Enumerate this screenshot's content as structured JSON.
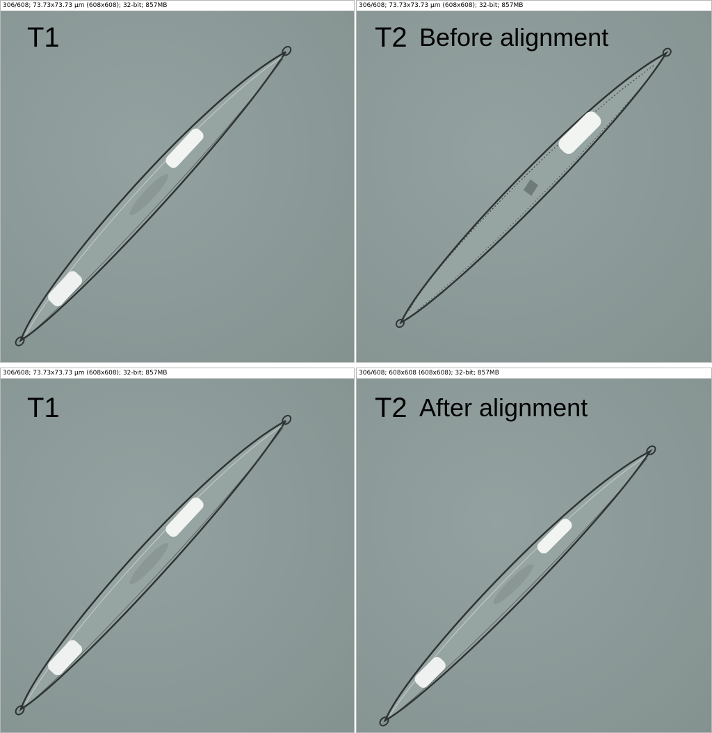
{
  "panels": [
    {
      "header": "306/608; 73.73x73.73 µm (608x608); 32-bit; 857MB",
      "time_label": "T1",
      "note": ""
    },
    {
      "header": "306/608; 73.73x73.73 µm (608x608); 32-bit; 857MB",
      "time_label": "T2",
      "note": "Before alignment"
    },
    {
      "header": "306/608; 73.73x73.73 µm (608x608); 32-bit; 857MB",
      "time_label": "T1",
      "note": ""
    },
    {
      "header": "306/608; 608x608   (608x608); 32-bit; 857MB",
      "time_label": "T2",
      "note": "After alignment"
    }
  ],
  "colors": {
    "background": "#8a9897",
    "cell_outline": "#2e3433",
    "chloroplast": "#f2f4f2"
  }
}
